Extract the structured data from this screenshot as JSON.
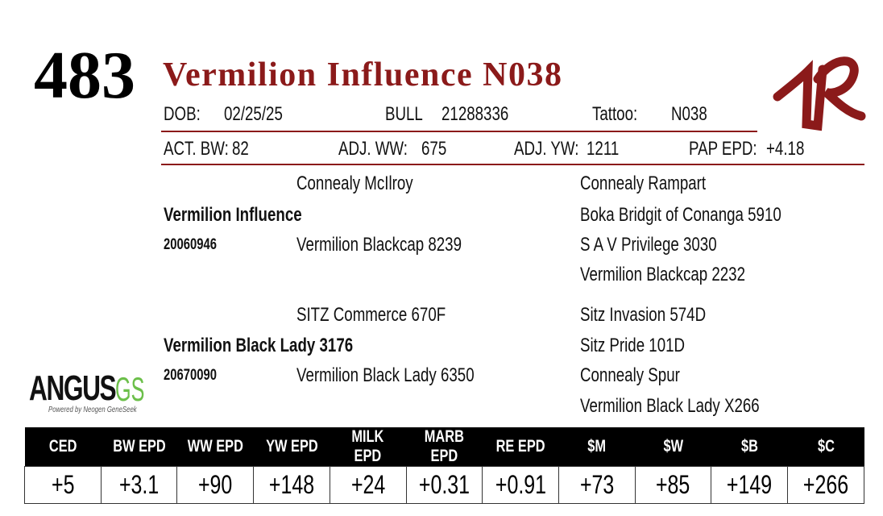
{
  "lot": "483",
  "name": "Vermilion Influence N038",
  "info": {
    "dob_label": "DOB:",
    "dob": "02/25/25",
    "sex": "BULL",
    "registration": "21288336",
    "tattoo_label": "Tattoo:",
    "tattoo": "N038"
  },
  "weights": [
    {
      "label": "ACT. BW:",
      "value": "82"
    },
    {
      "label": "ADJ. WW:",
      "value": "675"
    },
    {
      "label": "ADJ. YW:",
      "value": "1211"
    },
    {
      "label": "PAP EPD:",
      "value": "+4.18"
    }
  ],
  "pedigree": {
    "sire": {
      "name": "Vermilion Influence",
      "registration": "20060946",
      "sire": "Connealy McIlroy",
      "dam": "Vermilion Blackcap 8239",
      "grandparents": [
        "Connealy Rampart",
        "Boka Bridgit of Conanga 5910",
        "S A V Privilege 3030",
        "Vermilion Blackcap 2232"
      ]
    },
    "dam": {
      "name": "Vermilion Black Lady 3176",
      "registration": "20670090",
      "sire": "SITZ Commerce 670F",
      "dam": "Vermilion Black Lady 6350",
      "grandparents": [
        "Sitz Invasion 574D",
        "Sitz Pride 101D",
        "Connealy Spur",
        "Vermilion Black Lady X266"
      ]
    }
  },
  "logo": {
    "main": "ANGUS",
    "suffix": "GS",
    "tagline": "Powered by Neogen GeneSeek"
  },
  "epds": {
    "headers": [
      "CED",
      "BW EPD",
      "WW EPD",
      "YW EPD",
      "MILK EPD",
      "MARB EPD",
      "RE EPD",
      "$M",
      "$W",
      "$B",
      "$C"
    ],
    "values": [
      "+5",
      "+3.1",
      "+90",
      "+148",
      "+24",
      "+0.31",
      "+0.91",
      "+73",
      "+85",
      "+149",
      "+266"
    ]
  }
}
